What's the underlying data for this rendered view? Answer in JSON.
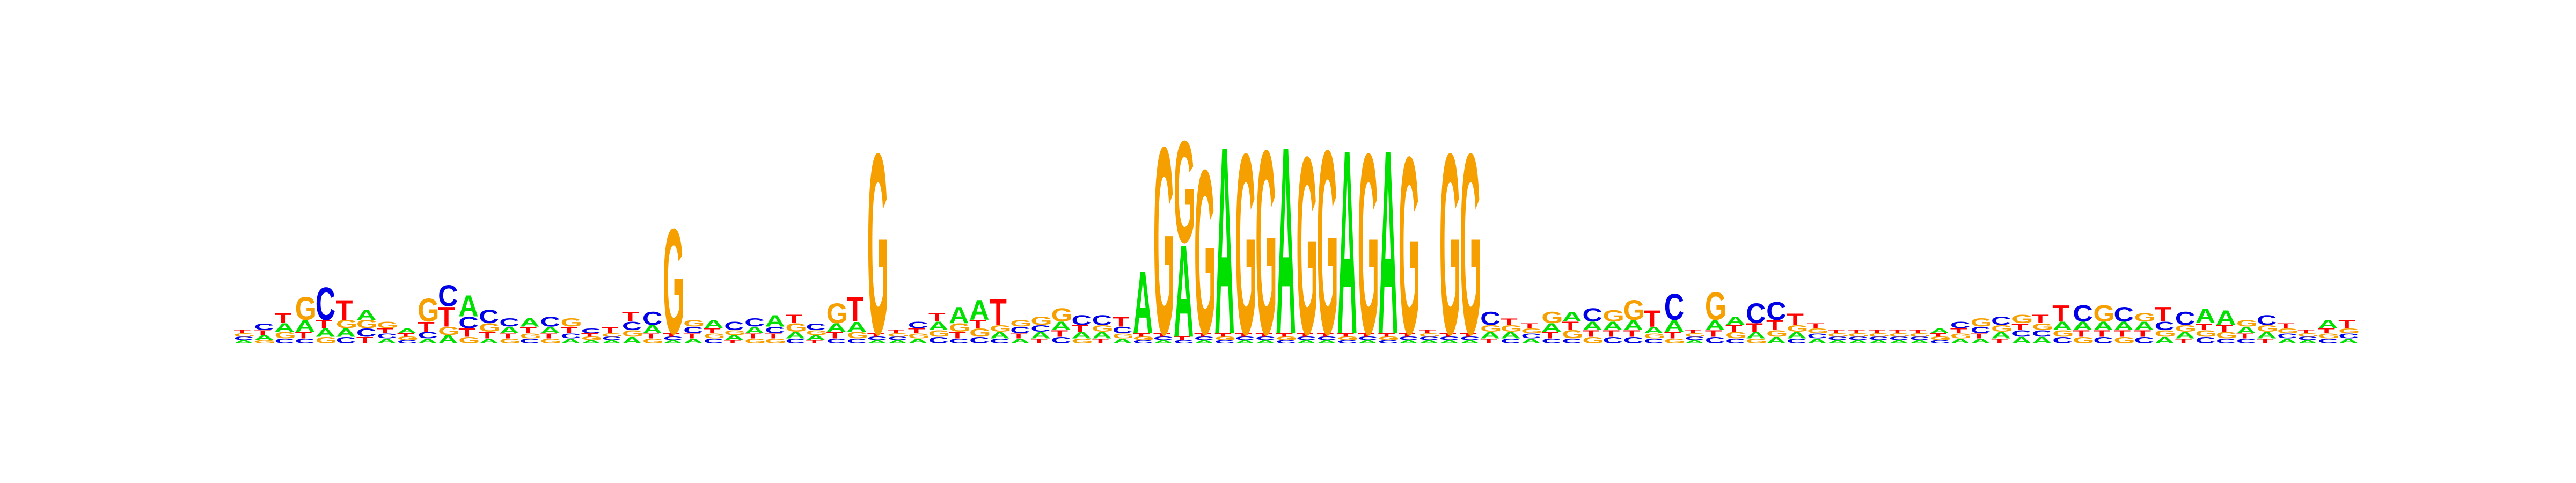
{
  "chart_data": {
    "type": "sequence-logo",
    "ylim": [
      0,
      2
    ],
    "colors": {
      "A": "#00e000",
      "C": "#0000e6",
      "G": "#f5a000",
      "T": "#ff0000"
    },
    "positions": [
      {
        "A": 0.02,
        "C": 0.02,
        "G": 0.02,
        "T": 0.02
      },
      {
        "A": 0.03,
        "C": 0.04,
        "G": 0.02,
        "T": 0.03
      },
      {
        "A": 0.05,
        "C": 0.03,
        "G": 0.04,
        "T": 0.06
      },
      {
        "A": 0.07,
        "C": 0.03,
        "G": 0.14,
        "T": 0.04
      },
      {
        "A": 0.05,
        "C": 0.2,
        "G": 0.04,
        "T": 0.05
      },
      {
        "A": 0.05,
        "C": 0.04,
        "G": 0.05,
        "T": 0.12
      },
      {
        "A": 0.06,
        "C": 0.05,
        "G": 0.05,
        "T": 0.04
      },
      {
        "A": 0.03,
        "C": 0.03,
        "G": 0.04,
        "T": 0.03
      },
      {
        "A": 0.03,
        "C": 0.02,
        "G": 0.02,
        "T": 0.02
      },
      {
        "A": 0.03,
        "C": 0.04,
        "G": 0.14,
        "T": 0.06
      },
      {
        "A": 0.05,
        "C": 0.13,
        "G": 0.05,
        "T": 0.12
      },
      {
        "A": 0.13,
        "C": 0.07,
        "G": 0.04,
        "T": 0.05
      },
      {
        "A": 0.03,
        "C": 0.08,
        "G": 0.05,
        "T": 0.04
      },
      {
        "A": 0.04,
        "C": 0.05,
        "G": 0.03,
        "T": 0.03
      },
      {
        "A": 0.05,
        "C": 0.03,
        "G": 0.03,
        "T": 0.04
      },
      {
        "A": 0.04,
        "C": 0.06,
        "G": 0.03,
        "T": 0.03
      },
      {
        "A": 0.03,
        "C": 0.03,
        "G": 0.05,
        "T": 0.04
      },
      {
        "A": 0.02,
        "C": 0.03,
        "G": 0.02,
        "T": 0.02
      },
      {
        "A": 0.02,
        "C": 0.02,
        "G": 0.02,
        "T": 0.04
      },
      {
        "A": 0.04,
        "C": 0.05,
        "G": 0.04,
        "T": 0.06
      },
      {
        "A": 0.05,
        "C": 0.08,
        "G": 0.03,
        "T": 0.03
      },
      {
        "A": 0.02,
        "C": 0.02,
        "G": 0.64,
        "T": 0.02
      },
      {
        "A": 0.03,
        "C": 0.04,
        "G": 0.04,
        "T": 0.03
      },
      {
        "A": 0.05,
        "C": 0.03,
        "G": 0.03,
        "T": 0.03
      },
      {
        "A": 0.03,
        "C": 0.05,
        "G": 0.03,
        "T": 0.02
      },
      {
        "A": 0.04,
        "C": 0.05,
        "G": 0.03,
        "T": 0.03
      },
      {
        "A": 0.07,
        "C": 0.04,
        "G": 0.03,
        "T": 0.03
      },
      {
        "A": 0.04,
        "C": 0.03,
        "G": 0.05,
        "T": 0.05
      },
      {
        "A": 0.03,
        "C": 0.04,
        "G": 0.03,
        "T": 0.02
      },
      {
        "A": 0.05,
        "C": 0.03,
        "G": 0.12,
        "T": 0.04
      },
      {
        "A": 0.06,
        "C": 0.03,
        "G": 0.04,
        "T": 0.15
      },
      {
        "A": 0.02,
        "C": 0.02,
        "G": 1.1,
        "T": 0.02
      },
      {
        "A": 0.02,
        "C": 0.02,
        "G": 0.02,
        "T": 0.02
      },
      {
        "A": 0.03,
        "C": 0.04,
        "G": 0.03,
        "T": 0.03
      },
      {
        "A": 0.05,
        "C": 0.04,
        "G": 0.04,
        "T": 0.05
      },
      {
        "A": 0.1,
        "C": 0.03,
        "G": 0.05,
        "T": 0.04
      },
      {
        "A": 0.12,
        "C": 0.04,
        "G": 0.05,
        "T": 0.05
      },
      {
        "A": 0.04,
        "C": 0.03,
        "G": 0.04,
        "T": 0.16
      },
      {
        "A": 0.03,
        "C": 0.04,
        "G": 0.04,
        "T": 0.03
      },
      {
        "A": 0.04,
        "C": 0.04,
        "G": 0.05,
        "T": 0.03
      },
      {
        "A": 0.05,
        "C": 0.04,
        "G": 0.08,
        "T": 0.04
      },
      {
        "A": 0.04,
        "C": 0.06,
        "G": 0.03,
        "T": 0.04
      },
      {
        "A": 0.04,
        "C": 0.06,
        "G": 0.04,
        "T": 0.03
      },
      {
        "A": 0.03,
        "C": 0.04,
        "G": 0.03,
        "T": 0.06
      },
      {
        "A": 0.38,
        "C": 0.02,
        "G": 0.02,
        "T": 0.02
      },
      {
        "A": 0.02,
        "C": 0.02,
        "G": 1.14,
        "T": 0.02
      },
      {
        "A": 0.56,
        "C": 0.02,
        "G": 0.62,
        "T": 0.02
      },
      {
        "A": 0.02,
        "C": 0.02,
        "G": 1.0,
        "T": 0.02
      },
      {
        "A": 1.14,
        "C": 0.02,
        "G": 0.02,
        "T": 0.02
      },
      {
        "A": 0.02,
        "C": 0.02,
        "G": 1.1,
        "T": 0.02
      },
      {
        "A": 0.02,
        "C": 0.02,
        "G": 1.12,
        "T": 0.02
      },
      {
        "A": 1.14,
        "C": 0.02,
        "G": 0.02,
        "T": 0.02
      },
      {
        "A": 0.02,
        "C": 0.02,
        "G": 1.08,
        "T": 0.02
      },
      {
        "A": 0.02,
        "C": 0.02,
        "G": 1.12,
        "T": 0.02
      },
      {
        "A": 1.12,
        "C": 0.02,
        "G": 0.02,
        "T": 0.02
      },
      {
        "A": 0.02,
        "C": 0.02,
        "G": 1.1,
        "T": 0.02
      },
      {
        "A": 1.12,
        "C": 0.02,
        "G": 0.02,
        "T": 0.02
      },
      {
        "A": 0.02,
        "C": 0.02,
        "G": 1.08,
        "T": 0.02
      },
      {
        "A": 0.02,
        "C": 0.02,
        "G": 0.02,
        "T": 0.02
      },
      {
        "A": 0.02,
        "C": 0.02,
        "G": 1.1,
        "T": 0.02
      },
      {
        "A": 0.02,
        "C": 0.02,
        "G": 1.1,
        "T": 0.02
      },
      {
        "A": 0.04,
        "C": 0.08,
        "G": 0.04,
        "T": 0.03
      },
      {
        "A": 0.04,
        "C": 0.03,
        "G": 0.04,
        "T": 0.04
      },
      {
        "A": 0.03,
        "C": 0.03,
        "G": 0.03,
        "T": 0.03
      },
      {
        "A": 0.05,
        "C": 0.03,
        "G": 0.07,
        "T": 0.04
      },
      {
        "A": 0.06,
        "C": 0.03,
        "G": 0.05,
        "T": 0.05
      },
      {
        "A": 0.05,
        "C": 0.08,
        "G": 0.04,
        "T": 0.04
      },
      {
        "A": 0.05,
        "C": 0.04,
        "G": 0.07,
        "T": 0.04
      },
      {
        "A": 0.06,
        "C": 0.04,
        "G": 0.12,
        "T": 0.04
      },
      {
        "A": 0.04,
        "C": 0.03,
        "G": 0.03,
        "T": 0.1
      },
      {
        "A": 0.07,
        "C": 0.16,
        "G": 0.03,
        "T": 0.04
      },
      {
        "A": 0.02,
        "C": 0.02,
        "G": 0.02,
        "T": 0.02
      },
      {
        "A": 0.06,
        "C": 0.04,
        "G": 0.17,
        "T": 0.04
      },
      {
        "A": 0.05,
        "C": 0.03,
        "G": 0.04,
        "T": 0.04
      },
      {
        "A": 0.04,
        "C": 0.12,
        "G": 0.03,
        "T": 0.05
      },
      {
        "A": 0.04,
        "C": 0.11,
        "G": 0.04,
        "T": 0.06
      },
      {
        "A": 0.04,
        "C": 0.03,
        "G": 0.04,
        "T": 0.07
      },
      {
        "A": 0.03,
        "C": 0.03,
        "G": 0.03,
        "T": 0.03
      },
      {
        "A": 0.02,
        "C": 0.02,
        "G": 0.02,
        "T": 0.02
      },
      {
        "A": 0.02,
        "C": 0.02,
        "G": 0.02,
        "T": 0.02
      },
      {
        "A": 0.02,
        "C": 0.02,
        "G": 0.02,
        "T": 0.02
      },
      {
        "A": 0.02,
        "C": 0.02,
        "G": 0.02,
        "T": 0.02
      },
      {
        "A": 0.02,
        "C": 0.02,
        "G": 0.02,
        "T": 0.02
      },
      {
        "A": 0.03,
        "C": 0.02,
        "G": 0.02,
        "T": 0.02
      },
      {
        "A": 0.03,
        "C": 0.04,
        "G": 0.03,
        "T": 0.03
      },
      {
        "A": 0.03,
        "C": 0.04,
        "G": 0.05,
        "T": 0.03
      },
      {
        "A": 0.04,
        "C": 0.05,
        "G": 0.04,
        "T": 0.03
      },
      {
        "A": 0.04,
        "C": 0.04,
        "G": 0.05,
        "T": 0.04
      },
      {
        "A": 0.04,
        "C": 0.04,
        "G": 0.04,
        "T": 0.05
      },
      {
        "A": 0.05,
        "C": 0.04,
        "G": 0.04,
        "T": 0.1
      },
      {
        "A": 0.05,
        "C": 0.1,
        "G": 0.04,
        "T": 0.04
      },
      {
        "A": 0.05,
        "C": 0.04,
        "G": 0.1,
        "T": 0.04
      },
      {
        "A": 0.05,
        "C": 0.09,
        "G": 0.04,
        "T": 0.04
      },
      {
        "A": 0.05,
        "C": 0.04,
        "G": 0.05,
        "T": 0.04
      },
      {
        "A": 0.04,
        "C": 0.05,
        "G": 0.04,
        "T": 0.09
      },
      {
        "A": 0.04,
        "C": 0.08,
        "G": 0.04,
        "T": 0.03
      },
      {
        "A": 0.09,
        "C": 0.04,
        "G": 0.04,
        "T": 0.04
      },
      {
        "A": 0.09,
        "C": 0.03,
        "G": 0.04,
        "T": 0.04
      },
      {
        "A": 0.04,
        "C": 0.03,
        "G": 0.04,
        "T": 0.03
      },
      {
        "A": 0.04,
        "C": 0.06,
        "G": 0.04,
        "T": 0.03
      },
      {
        "A": 0.03,
        "C": 0.03,
        "G": 0.03,
        "T": 0.03
      },
      {
        "A": 0.02,
        "C": 0.02,
        "G": 0.02,
        "T": 0.02
      },
      {
        "A": 0.05,
        "C": 0.03,
        "G": 0.03,
        "T": 0.03
      },
      {
        "A": 0.03,
        "C": 0.03,
        "G": 0.03,
        "T": 0.05
      }
    ]
  }
}
